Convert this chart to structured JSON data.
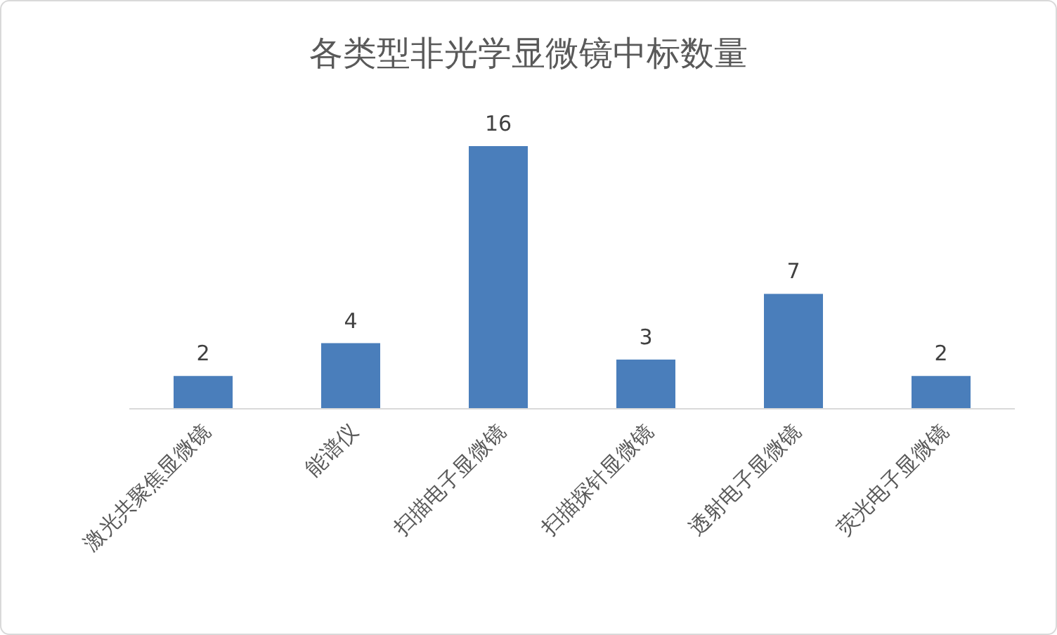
{
  "chart_data": {
    "type": "bar",
    "title": "各类型非光学显微镜中标数量",
    "categories": [
      "激光共聚焦显微镜",
      "能谱仪",
      "扫描电子显微镜",
      "扫描探针显微镜",
      "透射电子显微镜",
      "荧光电子显微镜"
    ],
    "values": [
      2,
      4,
      16,
      3,
      7,
      2
    ],
    "color": "#4a7ebb",
    "data_labels": true
  }
}
